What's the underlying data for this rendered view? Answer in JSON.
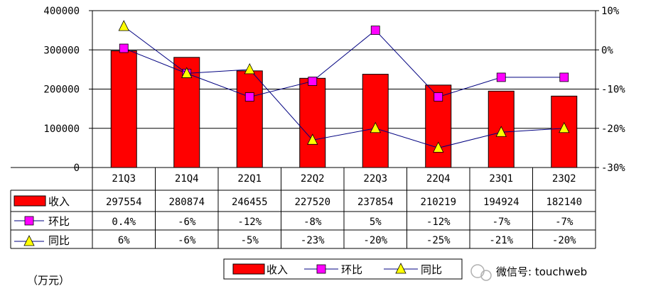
{
  "chart_data": {
    "type": "bar",
    "categories": [
      "21Q3",
      "21Q4",
      "22Q1",
      "22Q2",
      "22Q3",
      "22Q4",
      "23Q1",
      "23Q2"
    ],
    "unit_label": "（万元）",
    "left_axis": {
      "min": 0,
      "max": 400000,
      "ticks": [
        "0",
        "100000",
        "200000",
        "300000",
        "400000"
      ],
      "tick_values": [
        0,
        100000,
        200000,
        300000,
        400000
      ]
    },
    "right_axis": {
      "min": -30,
      "max": 10,
      "ticks": [
        "-30%",
        "-20%",
        "-10%",
        "0%",
        "10%"
      ],
      "tick_values": [
        -30,
        -20,
        -10,
        0,
        10
      ]
    },
    "grid": true,
    "series": [
      {
        "name": "收入",
        "type": "bar",
        "axis": "left",
        "color": "#ff0000",
        "values": [
          297554,
          280874,
          246455,
          227520,
          237854,
          210219,
          194924,
          182140
        ],
        "labels": [
          "297554",
          "280874",
          "246455",
          "227520",
          "237854",
          "210219",
          "194924",
          "182140"
        ]
      },
      {
        "name": "环比",
        "type": "line",
        "axis": "right",
        "color": "#000080",
        "marker": "square",
        "marker_color": "#ff00ff",
        "values": [
          0.4,
          -6,
          -12,
          -8,
          5,
          -12,
          -7,
          -7
        ],
        "labels": [
          "0.4%",
          "-6%",
          "-12%",
          "-8%",
          "5%",
          "-12%",
          "-7%",
          "-7%"
        ]
      },
      {
        "name": "同比",
        "type": "line",
        "axis": "right",
        "color": "#000080",
        "marker": "triangle",
        "marker_color": "#ffff00",
        "values": [
          6,
          -6,
          -5,
          -23,
          -20,
          -25,
          -21,
          -20
        ],
        "labels": [
          "6%",
          "-6%",
          "-5%",
          "-23%",
          "-20%",
          "-25%",
          "-21%",
          "-20%"
        ]
      }
    ],
    "legend": {
      "placement": "bottom-right",
      "items": [
        "收入",
        "环比",
        "同比"
      ]
    }
  },
  "watermark": {
    "text": "微信号: touchweb",
    "icon": "wechat-icon"
  }
}
